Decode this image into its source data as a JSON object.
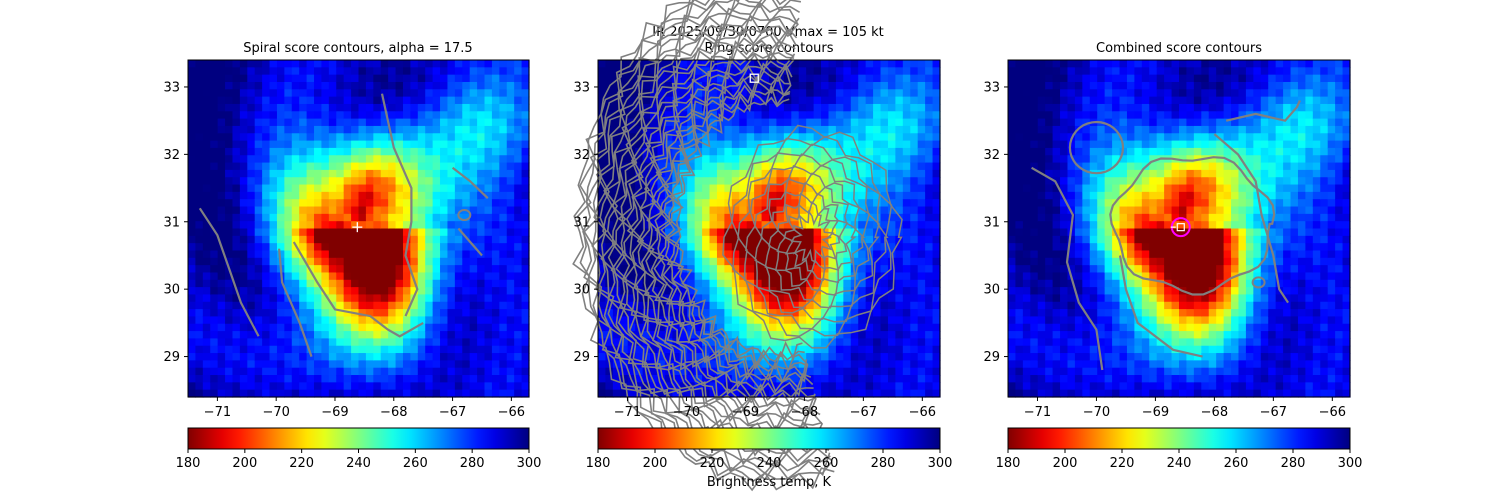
{
  "figure": {
    "title_line1": "IR  2025/09/30/0700    Vmax = 105 kt",
    "colorbar_label": "Brightness temp, K"
  },
  "chart_data": [
    {
      "type": "heatmap",
      "title": "Spiral score contours, alpha = 17.5",
      "xlim": [
        -71.5,
        -65.7
      ],
      "ylim": [
        28.4,
        33.4
      ],
      "xticks": [
        -71,
        -70,
        -69,
        -68,
        -67,
        -66
      ],
      "yticks": [
        29,
        30,
        31,
        32,
        33
      ],
      "xtick_labels": [
        "−71",
        "−70",
        "−69",
        "−68",
        "−67",
        "−66"
      ],
      "ytick_labels": [
        "29",
        "30",
        "31",
        "32",
        "33"
      ],
      "center": [
        -68.62,
        30.92
      ],
      "colormap": "jet_r",
      "clim": [
        180,
        300
      ],
      "colorbar_ticks": [
        "180",
        "200",
        "220",
        "240",
        "260",
        "280",
        "300"
      ],
      "marker": "white-plus"
    },
    {
      "type": "heatmap",
      "title": "Ring score contours",
      "xlim": [
        -71.5,
        -65.7
      ],
      "ylim": [
        28.4,
        33.4
      ],
      "xticks": [
        -71,
        -70,
        -69,
        -68,
        -67,
        -66
      ],
      "yticks": [
        29,
        30,
        31,
        32,
        33
      ],
      "xtick_labels": [
        "−71",
        "−70",
        "−69",
        "−68",
        "−67",
        "−66"
      ],
      "ytick_labels": [
        "29",
        "30",
        "31",
        "32",
        "33"
      ],
      "center": [
        -68.62,
        30.92
      ],
      "ring_max": [
        -68.85,
        33.13
      ],
      "colormap": "jet_r",
      "clim": [
        180,
        300
      ],
      "colorbar_ticks": [
        "180",
        "200",
        "220",
        "240",
        "260",
        "280",
        "300"
      ],
      "marker": "white-square"
    },
    {
      "type": "heatmap",
      "title": "Combined score contours",
      "xlim": [
        -71.5,
        -65.7
      ],
      "ylim": [
        28.4,
        33.4
      ],
      "xticks": [
        -71,
        -70,
        -69,
        -68,
        -67,
        -66
      ],
      "yticks": [
        29,
        30,
        31,
        32,
        33
      ],
      "xtick_labels": [
        "−71",
        "−70",
        "−69",
        "−68",
        "−67",
        "−66"
      ],
      "ytick_labels": [
        "29",
        "30",
        "31",
        "32",
        "33"
      ],
      "center": [
        -68.62,
        30.92
      ],
      "combined_max": [
        -68.57,
        30.92
      ],
      "colormap": "jet_r",
      "clim": [
        180,
        300
      ],
      "colorbar_ticks": [
        "180",
        "200",
        "220",
        "240",
        "260",
        "280",
        "300"
      ],
      "marker": "magenta-circle"
    }
  ],
  "colors": {
    "contour": "#808080",
    "marker_white": "#ffffff",
    "marker_magenta": "#ff00ff"
  }
}
